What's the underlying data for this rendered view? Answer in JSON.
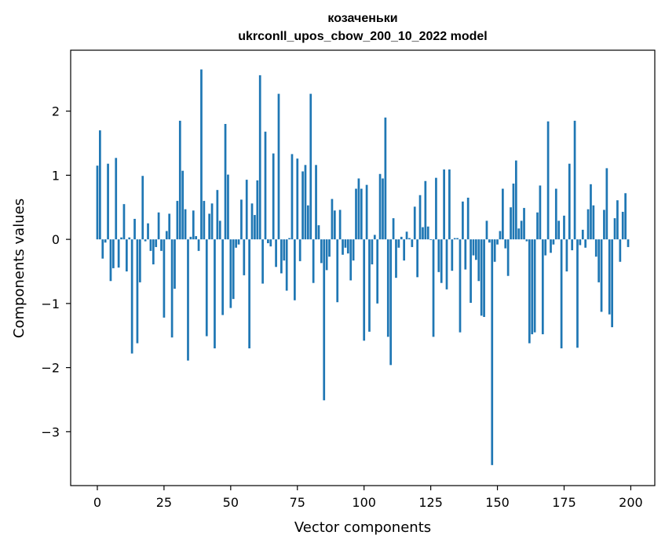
{
  "chart_data": {
    "type": "bar",
    "title": "козаченьки",
    "subtitle": "ukrconll_upos_cbow_200_10_2022 model",
    "xlabel": "Vector components",
    "ylabel": "Components values",
    "xlim": [
      -10,
      209
    ],
    "ylim": [
      -3.84,
      2.95
    ],
    "xticks": [
      0,
      25,
      50,
      75,
      100,
      125,
      150,
      175,
      200
    ],
    "yticks": [
      -3,
      -2,
      -1,
      0,
      1,
      2
    ],
    "ytick_labels": [
      "−3",
      "−2",
      "−1",
      "0",
      "1",
      "2"
    ],
    "grid": false,
    "bar_color": "#1f77b4",
    "x": [
      0,
      1,
      2,
      3,
      4,
      5,
      6,
      7,
      8,
      9,
      10,
      11,
      12,
      13,
      14,
      15,
      16,
      17,
      18,
      19,
      20,
      21,
      22,
      23,
      24,
      25,
      26,
      27,
      28,
      29,
      30,
      31,
      32,
      33,
      34,
      35,
      36,
      37,
      38,
      39,
      40,
      41,
      42,
      43,
      44,
      45,
      46,
      47,
      48,
      49,
      50,
      51,
      52,
      53,
      54,
      55,
      56,
      57,
      58,
      59,
      60,
      61,
      62,
      63,
      64,
      65,
      66,
      67,
      68,
      69,
      70,
      71,
      72,
      73,
      74,
      75,
      76,
      77,
      78,
      79,
      80,
      81,
      82,
      83,
      84,
      85,
      86,
      87,
      88,
      89,
      90,
      91,
      92,
      93,
      94,
      95,
      96,
      97,
      98,
      99,
      100,
      101,
      102,
      103,
      104,
      105,
      106,
      107,
      108,
      109,
      110,
      111,
      112,
      113,
      114,
      115,
      116,
      117,
      118,
      119,
      120,
      121,
      122,
      123,
      124,
      125,
      126,
      127,
      128,
      129,
      130,
      131,
      132,
      133,
      134,
      135,
      136,
      137,
      138,
      139,
      140,
      141,
      142,
      143,
      144,
      145,
      146,
      147,
      148,
      149,
      150,
      151,
      152,
      153,
      154,
      155,
      156,
      157,
      158,
      159,
      160,
      161,
      162,
      163,
      164,
      165,
      166,
      167,
      168,
      169,
      170,
      171,
      172,
      173,
      174,
      175,
      176,
      177,
      178,
      179,
      180,
      181,
      182,
      183,
      184,
      185,
      186,
      187,
      188,
      189,
      190,
      191,
      192,
      193,
      194,
      195,
      196,
      197,
      198,
      199
    ],
    "values": [
      1.15,
      1.7,
      -0.3,
      -0.05,
      1.18,
      -0.65,
      -0.45,
      1.27,
      -0.44,
      0.03,
      0.55,
      -0.5,
      0.03,
      -1.78,
      0.32,
      -1.62,
      -0.67,
      0.99,
      -0.03,
      0.25,
      -0.18,
      -0.39,
      -0.12,
      0.42,
      -0.18,
      -1.22,
      0.13,
      0.4,
      -1.53,
      -0.77,
      0.6,
      1.85,
      1.07,
      0.47,
      -1.89,
      0.04,
      0.45,
      0.05,
      -0.18,
      2.65,
      0.6,
      -1.51,
      0.4,
      0.56,
      -1.7,
      0.77,
      0.29,
      -1.18,
      1.8,
      1.01,
      -1.07,
      -0.93,
      -0.13,
      -0.08,
      0.62,
      -0.56,
      0.93,
      -1.7,
      0.56,
      0.38,
      0.92,
      2.56,
      -0.69,
      1.68,
      -0.06,
      -0.11,
      1.34,
      -0.43,
      2.27,
      -0.53,
      -0.33,
      -0.8,
      0.02,
      1.33,
      -0.95,
      1.26,
      -0.34,
      1.06,
      1.16,
      0.53,
      2.27,
      -0.68,
      1.16,
      0.22,
      -0.37,
      -2.51,
      -0.48,
      -0.27,
      0.63,
      0.45,
      -0.98,
      0.46,
      -0.24,
      -0.13,
      -0.22,
      -0.64,
      -0.33,
      0.79,
      0.95,
      0.79,
      -1.58,
      0.85,
      -1.44,
      -0.39,
      0.07,
      -1.0,
      1.02,
      0.95,
      1.9,
      -1.52,
      -1.96,
      0.33,
      -0.6,
      -0.13,
      0.04,
      -0.33,
      0.12,
      0.02,
      -0.12,
      0.51,
      -0.59,
      0.69,
      0.19,
      0.91,
      0.2,
      -0.01,
      -1.52,
      0.96,
      -0.51,
      -0.68,
      1.09,
      -0.78,
      1.09,
      -0.49,
      0.02,
      0.02,
      -1.45,
      0.59,
      -0.47,
      0.65,
      -0.99,
      -0.25,
      -0.32,
      -0.65,
      -1.19,
      -1.21,
      0.29,
      -0.05,
      -3.52,
      -0.35,
      -0.08,
      0.13,
      0.79,
      -0.14,
      -0.57,
      0.5,
      0.87,
      1.23,
      0.17,
      0.29,
      0.49,
      -0.03,
      -1.62,
      -1.48,
      -1.45,
      0.42,
      0.84,
      -1.48,
      -0.25,
      1.84,
      -0.21,
      -0.08,
      0.79,
      0.29,
      -1.7,
      0.37,
      -0.5,
      1.18,
      -0.17,
      1.85,
      -1.69,
      -0.09,
      0.15,
      -0.13,
      0.47,
      0.86,
      0.53,
      -0.27,
      -0.67,
      -1.13,
      0.46,
      1.11,
      -1.17,
      -1.37,
      0.33,
      0.61,
      -0.35,
      0.43,
      0.72,
      -0.12
    ]
  }
}
